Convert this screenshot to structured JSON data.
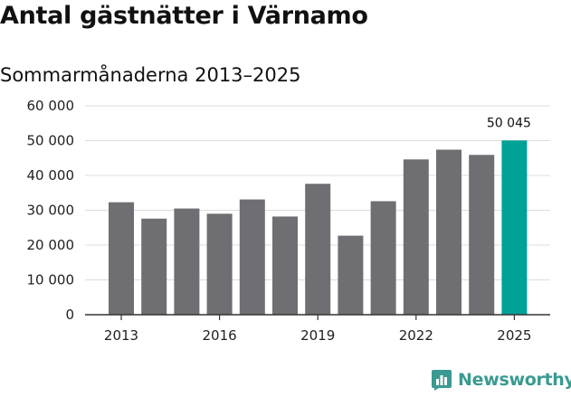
{
  "chart_data": {
    "type": "bar",
    "title": "Antal gästnätter i Värnamo",
    "subtitle": "Sommarmånaderna 2013–2025",
    "categories": [
      "2013",
      "2014",
      "2015",
      "2016",
      "2017",
      "2018",
      "2019",
      "2020",
      "2021",
      "2022",
      "2023",
      "2024",
      "2025"
    ],
    "values": [
      32300,
      27600,
      30500,
      29000,
      33100,
      28200,
      37600,
      22700,
      32600,
      44600,
      47400,
      45900,
      50045
    ],
    "x_tick_labels": [
      "2013",
      "2016",
      "2019",
      "2022",
      "2025"
    ],
    "y_tick_labels": [
      "0",
      "10 000",
      "20 000",
      "30 000",
      "40 000",
      "50 000",
      "60 000"
    ],
    "y_ticks": [
      0,
      10000,
      20000,
      30000,
      40000,
      50000,
      60000
    ],
    "ylim": [
      0,
      60000
    ],
    "grid": true,
    "highlight_index": 12,
    "highlight_label": "50 045",
    "colors": {
      "bar": "#6f6e73",
      "highlight": "#00a196",
      "grid": "#dddddd",
      "axis": "#333333"
    }
  },
  "brand": {
    "name": "Newsworthy",
    "icon": "newsworthy-logo-icon",
    "color": "#3a9a91"
  }
}
